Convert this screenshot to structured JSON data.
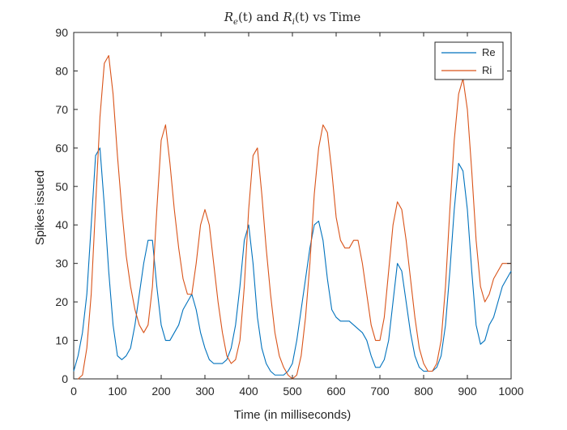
{
  "colors": {
    "background": "#ffffff",
    "axis": "#262626",
    "re": "#0072bd",
    "ri": "#d95319"
  },
  "chart_data": {
    "type": "line",
    "title": "Re(t) and Ri(t) vs Time",
    "title_parts": {
      "r1": "R",
      "sub1": "e",
      "mid1": "(t) and ",
      "r2": "R",
      "sub2": "i",
      "mid2": "(t) vs Time"
    },
    "xlabel": "Time (in milliseconds)",
    "ylabel": "Spikes issued",
    "xlim": [
      0,
      1000
    ],
    "ylim": [
      0,
      90
    ],
    "xticks": [
      0,
      100,
      200,
      300,
      400,
      500,
      600,
      700,
      800,
      900,
      1000
    ],
    "yticks": [
      0,
      10,
      20,
      30,
      40,
      50,
      60,
      70,
      80,
      90
    ],
    "grid": false,
    "legend_position": "top-right",
    "series": [
      {
        "name": "Re",
        "color": "#0072bd",
        "x": [
          0,
          10,
          20,
          30,
          40,
          50,
          60,
          70,
          80,
          90,
          100,
          110,
          120,
          130,
          140,
          150,
          160,
          170,
          180,
          190,
          200,
          210,
          220,
          230,
          240,
          250,
          260,
          270,
          280,
          290,
          300,
          310,
          320,
          330,
          340,
          350,
          360,
          370,
          380,
          390,
          400,
          410,
          420,
          430,
          440,
          450,
          460,
          470,
          480,
          490,
          500,
          510,
          520,
          530,
          540,
          550,
          560,
          570,
          580,
          590,
          600,
          610,
          620,
          630,
          640,
          650,
          660,
          670,
          680,
          690,
          700,
          710,
          720,
          730,
          740,
          750,
          760,
          770,
          780,
          790,
          800,
          810,
          820,
          830,
          840,
          850,
          860,
          870,
          880,
          890,
          900,
          910,
          920,
          930,
          940,
          950,
          960,
          970,
          980,
          990,
          1000
        ],
        "values": [
          2,
          6,
          12,
          22,
          40,
          58,
          60,
          45,
          28,
          14,
          6,
          5,
          6,
          8,
          14,
          22,
          30,
          36,
          36,
          24,
          14,
          10,
          10,
          12,
          14,
          18,
          20,
          22,
          18,
          12,
          8,
          5,
          4,
          4,
          4,
          5,
          8,
          14,
          24,
          36,
          40,
          30,
          16,
          8,
          4,
          2,
          1,
          1,
          1,
          2,
          4,
          10,
          18,
          26,
          34,
          40,
          41,
          36,
          26,
          18,
          16,
          15,
          15,
          15,
          14,
          13,
          12,
          10,
          6,
          3,
          3,
          5,
          10,
          20,
          30,
          28,
          20,
          12,
          6,
          3,
          2,
          2,
          2,
          3,
          6,
          14,
          28,
          44,
          56,
          54,
          44,
          28,
          14,
          9,
          10,
          14,
          16,
          20,
          24,
          26,
          28
        ]
      },
      {
        "name": "Ri",
        "color": "#d95319",
        "x": [
          0,
          10,
          20,
          30,
          40,
          50,
          60,
          70,
          80,
          90,
          100,
          110,
          120,
          130,
          140,
          150,
          160,
          170,
          180,
          190,
          200,
          210,
          220,
          230,
          240,
          250,
          260,
          270,
          280,
          290,
          300,
          310,
          320,
          330,
          340,
          350,
          360,
          370,
          380,
          390,
          400,
          410,
          420,
          430,
          440,
          450,
          460,
          470,
          480,
          490,
          500,
          510,
          520,
          530,
          540,
          550,
          560,
          570,
          580,
          590,
          600,
          610,
          620,
          630,
          640,
          650,
          660,
          670,
          680,
          690,
          700,
          710,
          720,
          730,
          740,
          750,
          760,
          770,
          780,
          790,
          800,
          810,
          820,
          830,
          840,
          850,
          860,
          870,
          880,
          890,
          900,
          910,
          920,
          930,
          940,
          950,
          960,
          970,
          980,
          990,
          1000
        ],
        "values": [
          0,
          0,
          1,
          8,
          22,
          45,
          68,
          82,
          84,
          74,
          58,
          44,
          32,
          24,
          18,
          14,
          12,
          14,
          24,
          44,
          62,
          66,
          56,
          44,
          34,
          26,
          22,
          22,
          30,
          40,
          44,
          40,
          30,
          20,
          12,
          6,
          4,
          5,
          10,
          24,
          44,
          58,
          60,
          48,
          34,
          22,
          12,
          6,
          3,
          1,
          0,
          1,
          6,
          16,
          30,
          48,
          60,
          66,
          64,
          54,
          42,
          36,
          34,
          34,
          36,
          36,
          30,
          22,
          14,
          10,
          10,
          16,
          28,
          40,
          46,
          44,
          36,
          26,
          16,
          8,
          4,
          2,
          2,
          4,
          10,
          24,
          44,
          62,
          74,
          78,
          70,
          54,
          36,
          24,
          20,
          22,
          26,
          28,
          30,
          30,
          30
        ]
      }
    ]
  }
}
